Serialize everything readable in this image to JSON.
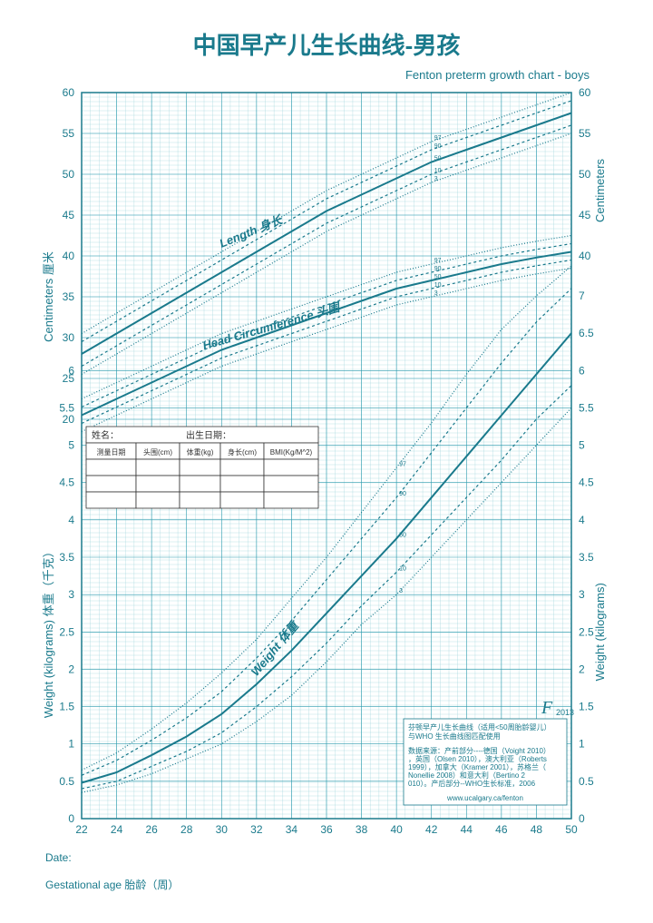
{
  "title": "中国早产儿生长曲线-男孩",
  "subtitle": "Fenton preterm growth chart - boys",
  "axes": {
    "x": {
      "label": "Gestational age  胎龄（周）",
      "min": 22,
      "max": 50,
      "step": 2
    },
    "left_upper": {
      "label": "Centimeters 厘米",
      "min": 20,
      "max": 60,
      "ticks": [
        20,
        25,
        30,
        35,
        40,
        45,
        50,
        55,
        60
      ]
    },
    "right_upper": {
      "label": "Centimeters",
      "ticks": [
        40,
        45,
        50,
        55,
        60
      ]
    },
    "right_mid": {
      "ticks": [
        6.5,
        7
      ]
    },
    "left_lower": {
      "label": "Weight (kilograms) 体重（千克）",
      "ticks": [
        0,
        0.5,
        1,
        1.5,
        2,
        2.5,
        3,
        3.5,
        4,
        4.5,
        5,
        5.5,
        6
      ]
    },
    "right_lower": {
      "label": "Weight (kilograms)",
      "ticks": [
        0,
        0.5,
        1,
        1.5,
        2,
        2.5,
        3,
        3.5,
        4,
        4.5,
        5,
        5.5,
        6
      ]
    }
  },
  "sections": {
    "length": {
      "label_en": "Length",
      "label_cn": "身长"
    },
    "head": {
      "label_en": "Head Circumference",
      "label_cn": "头围"
    },
    "weight": {
      "label_en": "Weight",
      "label_cn": "体重"
    }
  },
  "percentiles": [
    "3",
    "10",
    "50",
    "90",
    "97"
  ],
  "curves": {
    "length": {
      "p3": [
        [
          22,
          25.5
        ],
        [
          24,
          28
        ],
        [
          26,
          30.5
        ],
        [
          28,
          33
        ],
        [
          30,
          35.5
        ],
        [
          32,
          38
        ],
        [
          34,
          40.5
        ],
        [
          36,
          43
        ],
        [
          38,
          45
        ],
        [
          40,
          47
        ],
        [
          42,
          49
        ],
        [
          44,
          50.5
        ],
        [
          46,
          52
        ],
        [
          48,
          53.5
        ],
        [
          50,
          55
        ]
      ],
      "p10": [
        [
          22,
          26.5
        ],
        [
          24,
          29
        ],
        [
          26,
          31.5
        ],
        [
          28,
          34
        ],
        [
          30,
          36.5
        ],
        [
          32,
          39
        ],
        [
          34,
          41.5
        ],
        [
          36,
          44
        ],
        [
          38,
          46
        ],
        [
          40,
          48
        ],
        [
          42,
          50
        ],
        [
          44,
          51.5
        ],
        [
          46,
          53
        ],
        [
          48,
          54.5
        ],
        [
          50,
          56
        ]
      ],
      "p50": [
        [
          22,
          28
        ],
        [
          24,
          30.5
        ],
        [
          26,
          33
        ],
        [
          28,
          35.5
        ],
        [
          30,
          38
        ],
        [
          32,
          40.5
        ],
        [
          34,
          43
        ],
        [
          36,
          45.5
        ],
        [
          38,
          47.5
        ],
        [
          40,
          49.5
        ],
        [
          42,
          51.5
        ],
        [
          44,
          53
        ],
        [
          46,
          54.5
        ],
        [
          48,
          56
        ],
        [
          50,
          57.5
        ]
      ],
      "p90": [
        [
          22,
          29.5
        ],
        [
          24,
          32
        ],
        [
          26,
          34.5
        ],
        [
          28,
          37
        ],
        [
          30,
          39.5
        ],
        [
          32,
          42
        ],
        [
          34,
          44.5
        ],
        [
          36,
          47
        ],
        [
          38,
          49
        ],
        [
          40,
          51
        ],
        [
          42,
          53
        ],
        [
          44,
          54.5
        ],
        [
          46,
          56
        ],
        [
          48,
          57.5
        ],
        [
          50,
          59
        ]
      ],
      "p97": [
        [
          22,
          30.5
        ],
        [
          24,
          33
        ],
        [
          26,
          35.5
        ],
        [
          28,
          38
        ],
        [
          30,
          40.5
        ],
        [
          32,
          43
        ],
        [
          34,
          45.5
        ],
        [
          36,
          48
        ],
        [
          38,
          50
        ],
        [
          40,
          52
        ],
        [
          42,
          54
        ],
        [
          44,
          55.5
        ],
        [
          46,
          57
        ],
        [
          48,
          58.5
        ],
        [
          50,
          60
        ]
      ]
    },
    "head": {
      "p3": [
        [
          22,
          18.5
        ],
        [
          24,
          20.5
        ],
        [
          26,
          22.5
        ],
        [
          28,
          24.5
        ],
        [
          30,
          26.5
        ],
        [
          32,
          28
        ],
        [
          34,
          29.5
        ],
        [
          36,
          31
        ],
        [
          38,
          32.5
        ],
        [
          40,
          34
        ],
        [
          42,
          35
        ],
        [
          44,
          36
        ],
        [
          46,
          37
        ],
        [
          48,
          37.8
        ],
        [
          50,
          38.5
        ]
      ],
      "p10": [
        [
          22,
          19.5
        ],
        [
          24,
          21.5
        ],
        [
          26,
          23.5
        ],
        [
          28,
          25.5
        ],
        [
          30,
          27.5
        ],
        [
          32,
          29
        ],
        [
          34,
          30.5
        ],
        [
          36,
          32
        ],
        [
          38,
          33.5
        ],
        [
          40,
          35
        ],
        [
          42,
          36
        ],
        [
          44,
          37
        ],
        [
          46,
          38
        ],
        [
          48,
          38.8
        ],
        [
          50,
          39.5
        ]
      ],
      "p50": [
        [
          22,
          20.5
        ],
        [
          24,
          22.5
        ],
        [
          26,
          24.5
        ],
        [
          28,
          26.5
        ],
        [
          30,
          28.5
        ],
        [
          32,
          30
        ],
        [
          34,
          31.5
        ],
        [
          36,
          33
        ],
        [
          38,
          34.5
        ],
        [
          40,
          36
        ],
        [
          42,
          37
        ],
        [
          44,
          38
        ],
        [
          46,
          39
        ],
        [
          48,
          39.8
        ],
        [
          50,
          40.5
        ]
      ],
      "p90": [
        [
          22,
          21.5
        ],
        [
          24,
          23.5
        ],
        [
          26,
          25.5
        ],
        [
          28,
          27.5
        ],
        [
          30,
          29.5
        ],
        [
          32,
          31
        ],
        [
          34,
          32.5
        ],
        [
          36,
          34
        ],
        [
          38,
          35.5
        ],
        [
          40,
          37
        ],
        [
          42,
          38
        ],
        [
          44,
          39
        ],
        [
          46,
          40
        ],
        [
          48,
          40.8
        ],
        [
          50,
          41.5
        ]
      ],
      "p97": [
        [
          22,
          22.5
        ],
        [
          24,
          24.5
        ],
        [
          26,
          26.5
        ],
        [
          28,
          28.5
        ],
        [
          30,
          30.5
        ],
        [
          32,
          32
        ],
        [
          34,
          33.5
        ],
        [
          36,
          35
        ],
        [
          38,
          36.5
        ],
        [
          40,
          38
        ],
        [
          42,
          39
        ],
        [
          44,
          40
        ],
        [
          46,
          41
        ],
        [
          48,
          41.8
        ],
        [
          50,
          42.5
        ]
      ]
    },
    "weight": {
      "p3": [
        [
          22,
          0.35
        ],
        [
          24,
          0.45
        ],
        [
          26,
          0.6
        ],
        [
          28,
          0.8
        ],
        [
          30,
          1.0
        ],
        [
          32,
          1.3
        ],
        [
          34,
          1.65
        ],
        [
          36,
          2.1
        ],
        [
          38,
          2.6
        ],
        [
          40,
          3.0
        ],
        [
          42,
          3.5
        ],
        [
          44,
          4.0
        ],
        [
          46,
          4.5
        ],
        [
          48,
          5.0
        ],
        [
          50,
          5.5
        ]
      ],
      "p10": [
        [
          22,
          0.4
        ],
        [
          24,
          0.5
        ],
        [
          26,
          0.7
        ],
        [
          28,
          0.9
        ],
        [
          30,
          1.15
        ],
        [
          32,
          1.5
        ],
        [
          34,
          1.9
        ],
        [
          36,
          2.35
        ],
        [
          38,
          2.85
        ],
        [
          40,
          3.3
        ],
        [
          42,
          3.8
        ],
        [
          44,
          4.3
        ],
        [
          46,
          4.8
        ],
        [
          48,
          5.35
        ],
        [
          50,
          5.8
        ]
      ],
      "p50": [
        [
          22,
          0.48
        ],
        [
          24,
          0.62
        ],
        [
          26,
          0.85
        ],
        [
          28,
          1.1
        ],
        [
          30,
          1.4
        ],
        [
          32,
          1.8
        ],
        [
          34,
          2.25
        ],
        [
          36,
          2.75
        ],
        [
          38,
          3.25
        ],
        [
          40,
          3.75
        ],
        [
          42,
          4.3
        ],
        [
          44,
          4.85
        ],
        [
          46,
          5.4
        ],
        [
          48,
          5.95
        ],
        [
          50,
          6.5
        ]
      ],
      "p90": [
        [
          22,
          0.58
        ],
        [
          24,
          0.78
        ],
        [
          26,
          1.05
        ],
        [
          28,
          1.35
        ],
        [
          30,
          1.7
        ],
        [
          32,
          2.15
        ],
        [
          34,
          2.65
        ],
        [
          36,
          3.2
        ],
        [
          38,
          3.75
        ],
        [
          40,
          4.3
        ],
        [
          42,
          4.9
        ],
        [
          44,
          5.5
        ],
        [
          46,
          6.1
        ],
        [
          48,
          6.65
        ],
        [
          50,
          7.1
        ]
      ],
      "p97": [
        [
          22,
          0.65
        ],
        [
          24,
          0.88
        ],
        [
          26,
          1.2
        ],
        [
          28,
          1.55
        ],
        [
          30,
          1.95
        ],
        [
          32,
          2.4
        ],
        [
          34,
          2.95
        ],
        [
          36,
          3.5
        ],
        [
          38,
          4.1
        ],
        [
          40,
          4.7
        ],
        [
          42,
          5.3
        ],
        [
          44,
          5.95
        ],
        [
          46,
          6.55
        ],
        [
          48,
          7.0
        ],
        [
          50,
          7.4
        ]
      ]
    }
  },
  "form": {
    "name_label": "姓名：",
    "dob_label": "出生日期：",
    "cols": [
      "测量日期",
      "头围(cm)",
      "体重(kg)",
      "身长(cm)",
      "BMI(Kg/M^2)"
    ]
  },
  "info_box": {
    "line1": "芬顿早产儿生长曲线（适用<50周胎龄婴儿）",
    "line2": "与WHO 生长曲线图匹配使用",
    "sources": "数据来源：产前部分----德国（Voight 2010），英国（Olsen 2010），澳大利亚（Roberts 1999），加拿大（Kramer 2001），苏格兰（Nonellie 2008）和意大利（Bertino 2010）。产后部分--WHO生长标准，2006",
    "url": "www.ucalgary.ca/fenton",
    "year": "2013",
    "logo": "F"
  },
  "date_label": "Date:",
  "colors": {
    "primary": "#1a7a8c",
    "grid_major": "#2a9aad",
    "grid_minor": "#9ed4db",
    "bg": "#ffffff"
  }
}
